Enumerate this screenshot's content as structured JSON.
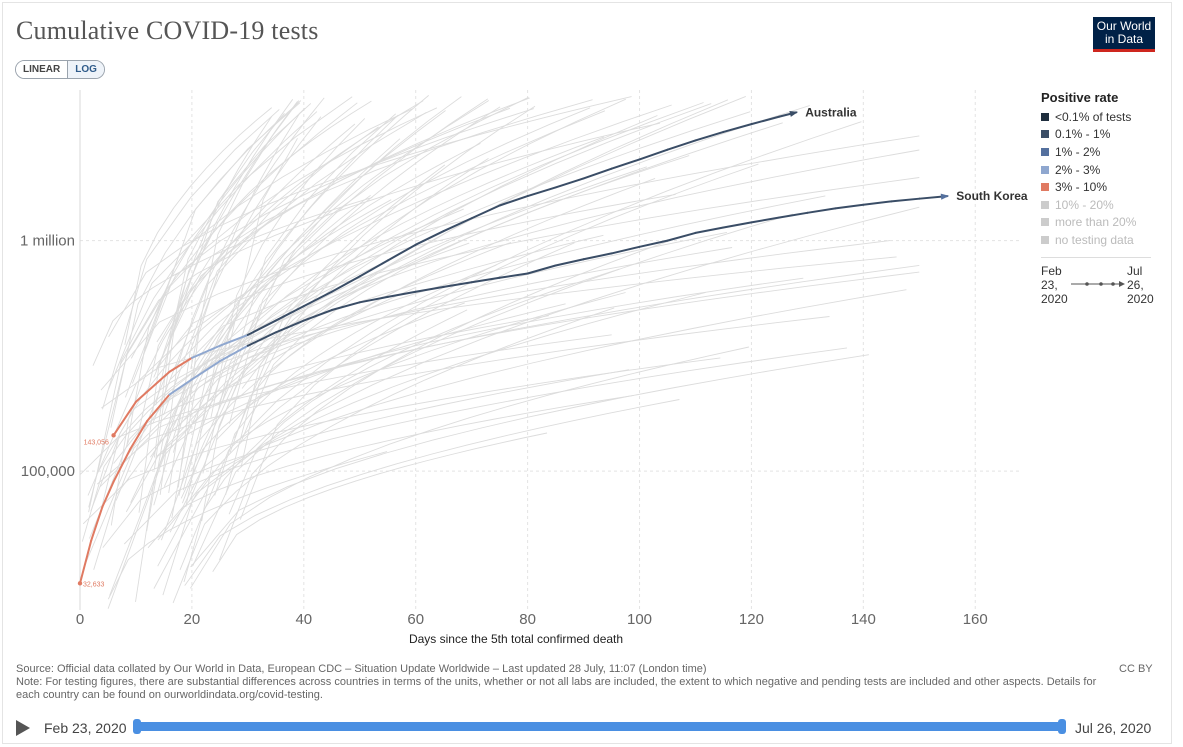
{
  "header": {
    "title": "Cumulative COVID-19 tests",
    "logo_line1": "Our World",
    "logo_line2": "in Data"
  },
  "scale_toggle": {
    "linear_label": "LINEAR",
    "log_label": "LOG",
    "active": "LOG"
  },
  "legend": {
    "title": "Positive rate",
    "items": [
      {
        "label": "<0.1% of tests",
        "color": "#1f2e3e",
        "muted": false
      },
      {
        "label": "0.1% - 1%",
        "color": "#3a4d66",
        "muted": false
      },
      {
        "label": "1% - 2%",
        "color": "#54709e",
        "muted": false
      },
      {
        "label": "2% - 3%",
        "color": "#8fa7cf",
        "muted": false
      },
      {
        "label": "3% - 10%",
        "color": "#e07a62",
        "muted": false
      },
      {
        "label": "10% - 20%",
        "color": "#cccccc",
        "muted": true
      },
      {
        "label": "more than 20%",
        "color": "#cccccc",
        "muted": true
      },
      {
        "label": "no testing data",
        "color": "#cccccc",
        "muted": true
      }
    ],
    "date_start_lines": [
      "Feb",
      "23,",
      "2020"
    ],
    "date_end_lines": [
      "Jul",
      "26,",
      "2020"
    ]
  },
  "chart_data": {
    "type": "line",
    "title": "Cumulative COVID-19 tests",
    "xlabel": "Days since the 5th total confirmed death",
    "ylabel": "",
    "y_scale": "log",
    "xlim": [
      0,
      168
    ],
    "ylim": [
      25000,
      4500000
    ],
    "x_ticks": [
      0,
      20,
      40,
      60,
      80,
      100,
      120,
      140,
      160
    ],
    "x_tick_labels": [
      "0",
      "20",
      "40",
      "60",
      "80",
      "100",
      "120",
      "140",
      "160"
    ],
    "y_ticks": [
      100000,
      1000000
    ],
    "y_tick_labels": [
      "100,000",
      "1 million"
    ],
    "grid": true,
    "background_lines": "many other countries shown in light grey",
    "series": [
      {
        "name": "Australia",
        "color": "#3a4d66",
        "points": [
          [
            6,
            143056
          ],
          [
            10,
            200000
          ],
          [
            16,
            270000
          ],
          [
            20,
            310000
          ],
          [
            25,
            350000
          ],
          [
            30,
            390000
          ],
          [
            35,
            450000
          ],
          [
            40,
            520000
          ],
          [
            45,
            600000
          ],
          [
            50,
            700000
          ],
          [
            55,
            820000
          ],
          [
            60,
            960000
          ],
          [
            65,
            1100000
          ],
          [
            70,
            1250000
          ],
          [
            75,
            1420000
          ],
          [
            80,
            1560000
          ],
          [
            85,
            1700000
          ],
          [
            90,
            1860000
          ],
          [
            95,
            2050000
          ],
          [
            100,
            2250000
          ],
          [
            105,
            2480000
          ],
          [
            110,
            2720000
          ],
          [
            115,
            2960000
          ],
          [
            120,
            3200000
          ],
          [
            125,
            3450000
          ],
          [
            128,
            3600000
          ]
        ],
        "segment_colors": [
          {
            "to_x": 19,
            "color": "#e07a62"
          },
          {
            "to_x": 30,
            "color": "#8fa7cf"
          },
          {
            "to_x": 168,
            "color": "#3a4d66"
          }
        ]
      },
      {
        "name": "South Korea",
        "color": "#54709e",
        "points": [
          [
            0,
            32633
          ],
          [
            2,
            50000
          ],
          [
            4,
            70000
          ],
          [
            6,
            90000
          ],
          [
            9,
            125000
          ],
          [
            12,
            165000
          ],
          [
            16,
            215000
          ],
          [
            20,
            250000
          ],
          [
            25,
            300000
          ],
          [
            30,
            350000
          ],
          [
            35,
            400000
          ],
          [
            40,
            450000
          ],
          [
            45,
            500000
          ],
          [
            50,
            540000
          ],
          [
            55,
            570000
          ],
          [
            60,
            600000
          ],
          [
            65,
            630000
          ],
          [
            70,
            660000
          ],
          [
            75,
            690000
          ],
          [
            80,
            720000
          ],
          [
            85,
            780000
          ],
          [
            90,
            830000
          ],
          [
            95,
            880000
          ],
          [
            100,
            940000
          ],
          [
            105,
            1000000
          ],
          [
            110,
            1080000
          ],
          [
            115,
            1140000
          ],
          [
            120,
            1200000
          ],
          [
            125,
            1260000
          ],
          [
            130,
            1320000
          ],
          [
            135,
            1380000
          ],
          [
            140,
            1430000
          ],
          [
            145,
            1480000
          ],
          [
            150,
            1520000
          ],
          [
            155,
            1560000
          ]
        ],
        "segment_colors": [
          {
            "to_x": 15,
            "color": "#e07a62"
          },
          {
            "to_x": 30,
            "color": "#8fa7cf"
          },
          {
            "to_x": 168,
            "color": "#3a4d66"
          }
        ]
      }
    ],
    "annotations": [
      {
        "label": "143,056",
        "x": 6,
        "y": 143056
      },
      {
        "label": "32,633",
        "x": 0,
        "y": 32633
      }
    ]
  },
  "footer": {
    "source": "Source: Official data collated by Our World in Data, European CDC – Situation Update Worldwide – Last updated 28 July, 11:07 (London time)",
    "note": "Note: For testing figures, there are substantial differences across countries in terms of the units, whether or not all labs are included, the extent to which negative and pending tests are included and other aspects. Details for each country can be found on ourworldindata.org/covid-testing.",
    "license": "CC BY"
  },
  "timeline": {
    "start_label": "Feb 23, 2020",
    "end_label": "Jul 26, 2020"
  }
}
